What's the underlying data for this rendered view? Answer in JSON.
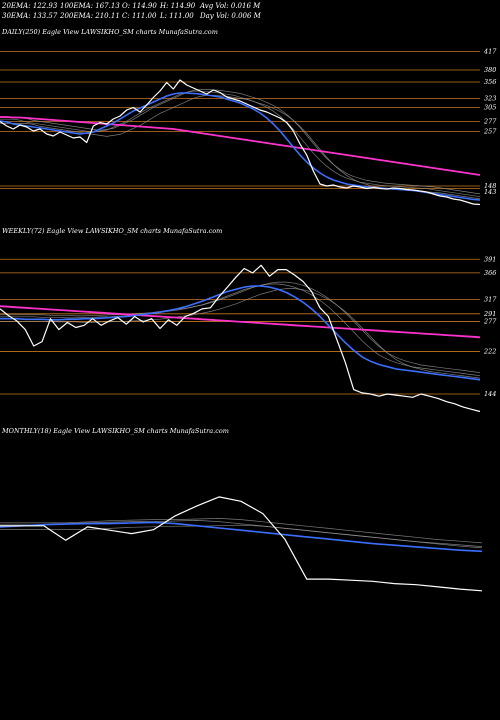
{
  "header": {
    "ema20": "20EMA: 122.93",
    "ema100": "100EMA: 167.13",
    "open": "O: 114.90",
    "high": "H: 114.90",
    "avg_vol": "Avg Vol: 0.016  M",
    "ema30": "30EMA: 133.57",
    "ema200": "200EMA: 210.11",
    "close": "C: 111.00",
    "low": "L: 111.00",
    "day_vol": "Day Vol: 0.006  M"
  },
  "colors": {
    "background": "#000000",
    "price": "#ffffff",
    "ema_fast": "#3b6fff",
    "ema_long": "#ff33cc",
    "level": "#c8761e",
    "ma_gray": "#9a9a9a"
  },
  "chart_data": [
    {
      "type": "line",
      "panel": "daily",
      "title": "DAILY(250) Eagle  View  LAWSIKHO_SM charts MunafaSutra.com",
      "levels": [
        {
          "label": "417",
          "value": 417
        },
        {
          "label": "380",
          "value": 380
        },
        {
          "label": "356",
          "value": 356
        },
        {
          "label": "323",
          "value": 323
        },
        {
          "label": "305",
          "value": 305
        },
        {
          "label": "277",
          "value": 277
        },
        {
          "label": "257",
          "value": 257
        },
        {
          "label": "148",
          "value": 148
        },
        {
          "label": "143",
          "value": 143
        }
      ],
      "ylim": [
        80,
        440
      ],
      "series": [
        {
          "role": "price",
          "values": [
            277,
            268,
            262,
            270,
            266,
            258,
            262,
            252,
            248,
            256,
            250,
            244,
            246,
            235,
            268,
            275,
            272,
            282,
            288,
            300,
            305,
            296,
            310,
            325,
            338,
            355,
            342,
            360,
            350,
            344,
            338,
            332,
            340,
            335,
            326,
            322,
            318,
            312,
            306,
            300,
            296,
            290,
            284,
            275,
            258,
            232,
            210,
            178,
            152,
            148,
            150,
            146,
            144,
            148,
            146,
            143,
            145,
            143,
            142,
            144,
            143,
            141,
            140,
            138,
            136,
            132,
            128,
            126,
            122,
            120,
            116,
            112,
            111
          ]
        },
        {
          "role": "ema_fast",
          "values": [
            278,
            276,
            272,
            270,
            268,
            266,
            264,
            262,
            260,
            258,
            256,
            254,
            252,
            254,
            256,
            262,
            268,
            274,
            282,
            290,
            298,
            304,
            310,
            316,
            322,
            328,
            332,
            334,
            334,
            333,
            332,
            330,
            328,
            326,
            322,
            318,
            314,
            308,
            302,
            294,
            284,
            272,
            258,
            242,
            226,
            210,
            196,
            184,
            174,
            166,
            160,
            156,
            152,
            150,
            148,
            146,
            145,
            144,
            143,
            142,
            141,
            140,
            139,
            137,
            135,
            133,
            131,
            129,
            127,
            125,
            123,
            121,
            120
          ]
        },
        {
          "role": "ema_long",
          "values": [
            286,
            286,
            285,
            285,
            284,
            283,
            282,
            281,
            280,
            279,
            278,
            277,
            276,
            275,
            274,
            273,
            272,
            271,
            270,
            269,
            268,
            267,
            266,
            265,
            264,
            263,
            262,
            260,
            258,
            256,
            254,
            252,
            250,
            248,
            246,
            244,
            242,
            240,
            238,
            236,
            234,
            232,
            230,
            228,
            226,
            224,
            222,
            220,
            218,
            216,
            214,
            212,
            210,
            208,
            206,
            204,
            202,
            200,
            198,
            196,
            194,
            192,
            190,
            188,
            186,
            184,
            182,
            180,
            178,
            176,
            174,
            172,
            170
          ]
        }
      ]
    },
    {
      "type": "line",
      "panel": "weekly",
      "title": "WEEKLY(72) Eagle  View  LAWSIKHO_SM charts MunafaSutra.com",
      "levels": [
        {
          "label": "391",
          "value": 391
        },
        {
          "label": "366",
          "value": 366
        },
        {
          "label": "317",
          "value": 317
        },
        {
          "label": "291",
          "value": 291
        },
        {
          "label": "277",
          "value": 277
        },
        {
          "label": "222",
          "value": 222
        },
        {
          "label": "144",
          "value": 144
        }
      ],
      "ylim": [
        100,
        430
      ],
      "series": [
        {
          "role": "price",
          "values": [
            300,
            288,
            278,
            262,
            232,
            240,
            282,
            262,
            275,
            266,
            270,
            282,
            270,
            278,
            284,
            272,
            286,
            276,
            282,
            264,
            280,
            270,
            286,
            292,
            300,
            302,
            322,
            340,
            358,
            374,
            366,
            380,
            360,
            372,
            372,
            362,
            350,
            332,
            302,
            286,
            244,
            202,
            152,
            146,
            144,
            140,
            144,
            142,
            140,
            138,
            144,
            140,
            136,
            130,
            126,
            120,
            116,
            112
          ]
        },
        {
          "role": "ema_fast",
          "values": [
            282,
            282,
            282,
            281,
            281,
            281,
            280,
            280,
            281,
            281,
            282,
            282,
            283,
            284,
            285,
            286,
            288,
            290,
            292,
            294,
            297,
            300,
            304,
            309,
            314,
            320,
            326,
            332,
            336,
            340,
            342,
            342,
            340,
            336,
            330,
            322,
            312,
            300,
            286,
            270,
            254,
            238,
            224,
            212,
            204,
            198,
            194,
            190,
            188,
            186,
            184,
            182,
            180,
            178,
            176,
            174,
            172,
            170
          ]
        },
        {
          "role": "ema_long",
          "values": [
            305,
            304,
            303,
            302,
            301,
            300,
            299,
            298,
            297,
            296,
            295,
            294,
            293,
            292,
            291,
            290,
            289,
            288,
            287,
            286,
            285,
            284,
            283,
            282,
            281,
            280,
            279,
            278,
            277,
            276,
            275,
            274,
            273,
            272,
            271,
            270,
            269,
            268,
            267,
            266,
            265,
            264,
            263,
            262,
            261,
            260,
            259,
            258,
            257,
            256,
            255,
            254,
            253,
            252,
            251,
            250,
            249,
            248
          ]
        }
      ]
    },
    {
      "type": "line",
      "panel": "monthly",
      "title": "MONTHLY(18) Eagle  View  LAWSIKHO_SM charts MunafaSutra.com",
      "levels": [],
      "ylim": [
        80,
        440
      ],
      "series": [
        {
          "role": "price",
          "values": [
            282,
            282,
            282,
            256,
            280,
            274,
            268,
            275,
            300,
            318,
            334,
            326,
            304,
            258,
            186,
            186,
            184,
            182,
            178,
            176,
            172,
            168,
            165
          ]
        },
        {
          "role": "ema_fast",
          "values": [
            280,
            282,
            284,
            285,
            286,
            286,
            287,
            288,
            286,
            282,
            278,
            274,
            270,
            266,
            262,
            258,
            254,
            250,
            247,
            244,
            241,
            238,
            236
          ]
        }
      ]
    }
  ]
}
